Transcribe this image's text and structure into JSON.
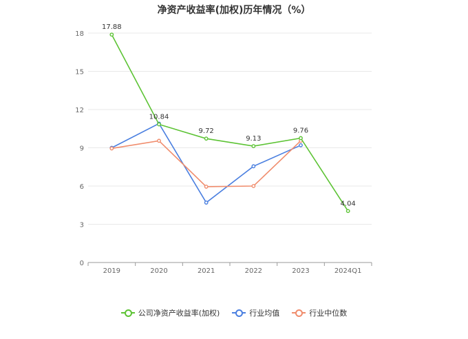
{
  "chart_data": {
    "type": "line",
    "title": "净资产收益率(加权)历年情况（%）",
    "categories": [
      "2019",
      "2020",
      "2021",
      "2022",
      "2023",
      "2024Q1"
    ],
    "ylim": [
      0,
      18
    ],
    "yticks": [
      0,
      3,
      6,
      9,
      12,
      15,
      18
    ],
    "grid": true,
    "legend_position": "bottom",
    "series": [
      {
        "name": "公司净资产收益率(加权)",
        "color": "#5cc334",
        "values": [
          17.88,
          10.84,
          9.72,
          9.13,
          9.76,
          4.04
        ],
        "labels": [
          "17.88",
          "10.84",
          "9.72",
          "9.13",
          "9.76",
          "4.04"
        ]
      },
      {
        "name": "行业均值",
        "color": "#4a7fe0",
        "values": [
          9.0,
          10.9,
          4.7,
          7.55,
          9.2,
          null
        ]
      },
      {
        "name": "行业中位数",
        "color": "#f08c6c",
        "values": [
          8.95,
          9.55,
          5.95,
          6.0,
          9.55,
          null
        ]
      }
    ]
  }
}
